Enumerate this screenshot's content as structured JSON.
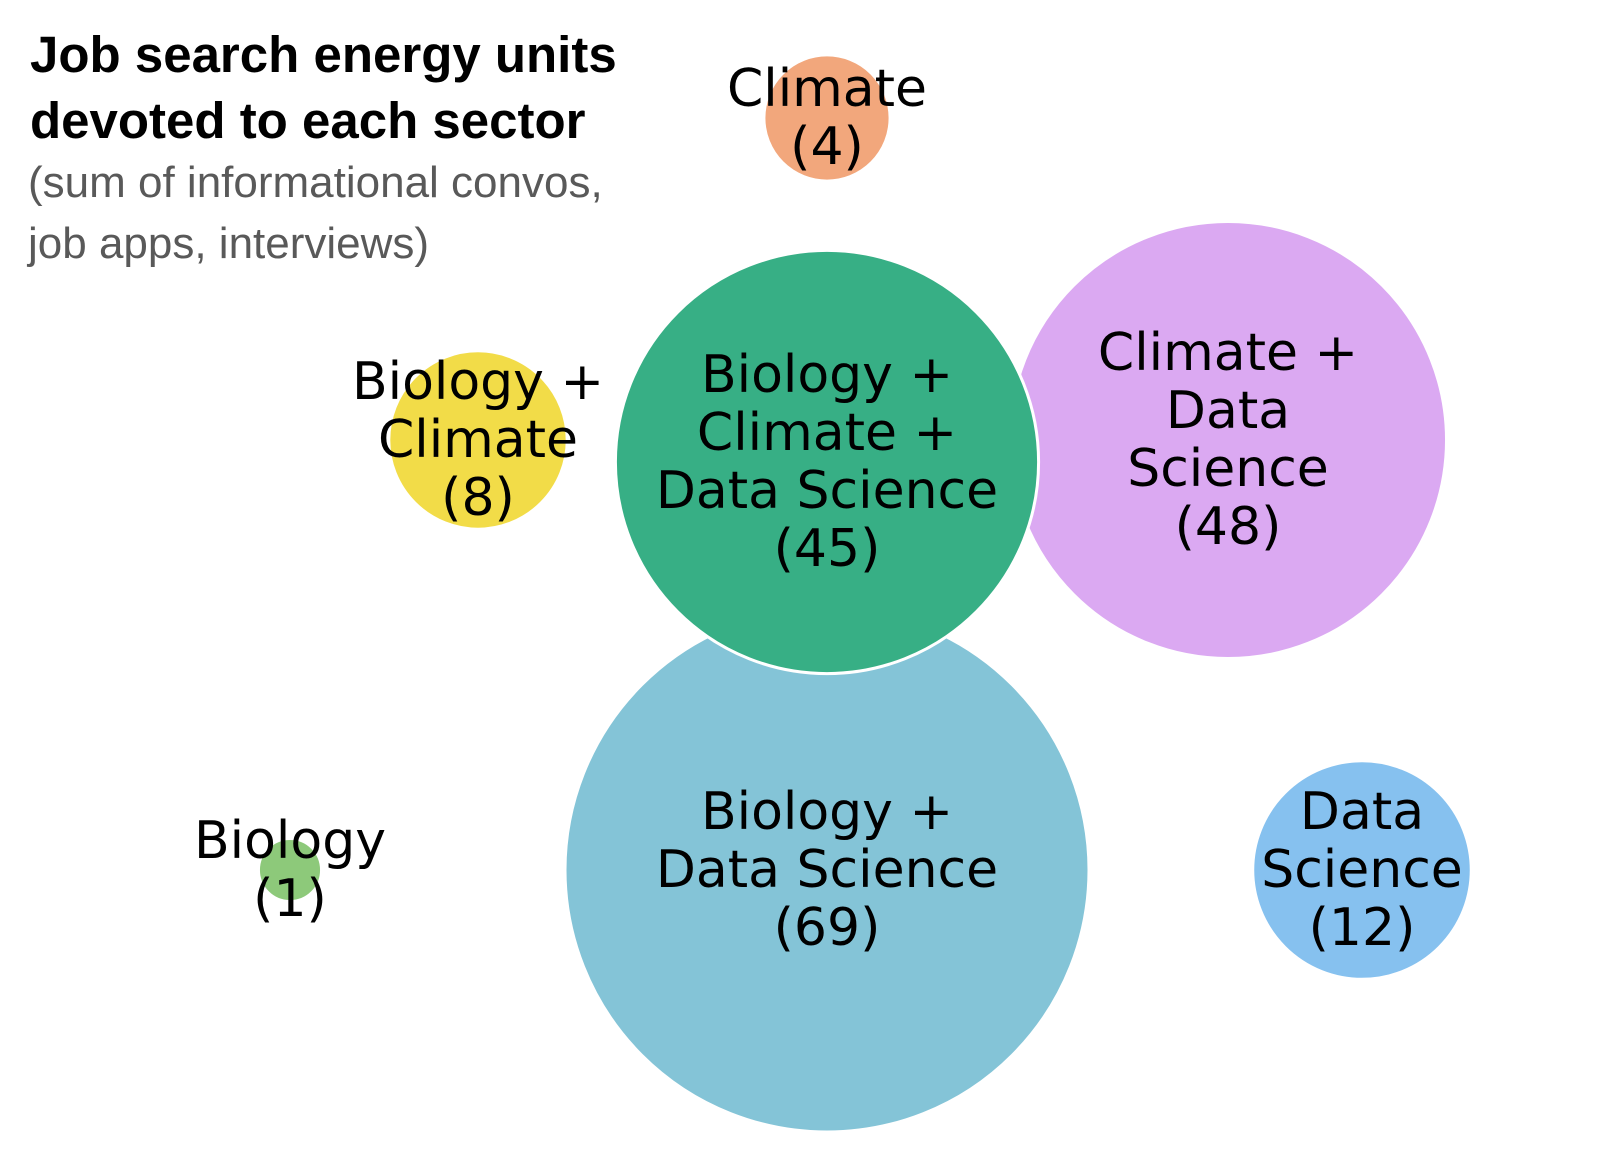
{
  "chart_data": {
    "type": "bubble",
    "title": [
      "Job search energy units",
      "devoted to each sector"
    ],
    "subtitle": [
      "(sum of informational convos,",
      "job apps, interviews)"
    ],
    "bubbles": [
      {
        "id": "climate",
        "label": [
          "Climate",
          "(4)"
        ],
        "value": 4,
        "color": "#f2a77c"
      },
      {
        "id": "biology-climate",
        "label": [
          "Biology +",
          "Climate",
          "(8)"
        ],
        "value": 8,
        "color": "#f2dc48"
      },
      {
        "id": "biology-climate-data-science",
        "label": [
          "Biology +",
          "Climate +",
          "Data Science",
          "(45)"
        ],
        "value": 45,
        "color": "#37af85"
      },
      {
        "id": "climate-data-science",
        "label": [
          "Climate +",
          "Data",
          "Science",
          "(48)"
        ],
        "value": 48,
        "color": "#dba9f2"
      },
      {
        "id": "biology-data-science",
        "label": [
          "Biology +",
          "Data Science",
          "(69)"
        ],
        "value": 69,
        "color": "#84c4d7"
      },
      {
        "id": "biology",
        "label": [
          "Biology",
          "(1)"
        ],
        "value": 1,
        "color": "#8dc97a"
      },
      {
        "id": "data-science",
        "label": [
          "Data",
          "Science",
          "(12)"
        ],
        "value": 12,
        "color": "#86c1ef"
      }
    ]
  }
}
